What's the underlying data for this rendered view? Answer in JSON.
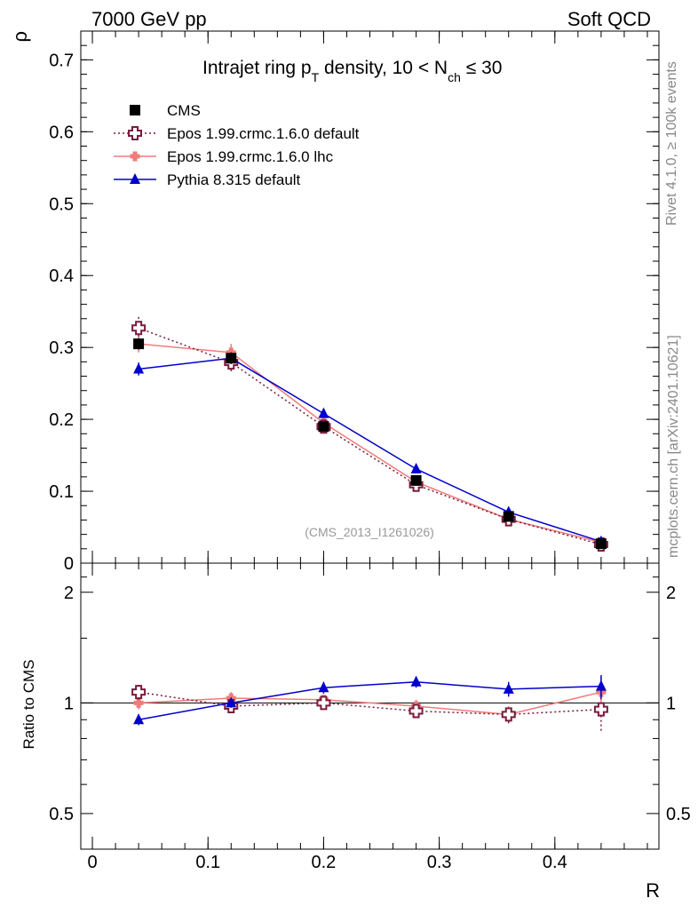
{
  "header": {
    "left": "7000 GeV pp",
    "right": "Soft QCD"
  },
  "side": {
    "rivet": "Rivet 4.1.0, ≥ 100k events",
    "site": "mcplots.cern.ch [arXiv:2401.10621]"
  },
  "chart_data": {
    "type": "line",
    "title_parts": {
      "a": "Intrajet ring p",
      "a_sub": "T",
      "b": " density, 10 < N",
      "b_sub": "ch",
      "c": " ≤ 30"
    },
    "ylabel": "ρ",
    "xlabel": "R",
    "ratio_ylabel": "Ratio to CMS",
    "watermark": "(CMS_2013_I1261026)",
    "xlim": [
      -0.01,
      0.49
    ],
    "ylim": [
      0,
      0.74
    ],
    "ratio_ylim": [
      0.4,
      2.4
    ],
    "xticks": [
      "0",
      "0.1",
      "0.2",
      "0.3",
      "0.4"
    ],
    "xtick_values": [
      0,
      0.1,
      0.2,
      0.3,
      0.4
    ],
    "yticks": [
      "0",
      "0.1",
      "0.2",
      "0.3",
      "0.4",
      "0.5",
      "0.6",
      "0.7"
    ],
    "ytick_values": [
      0,
      0.1,
      0.2,
      0.3,
      0.4,
      0.5,
      0.6,
      0.7
    ],
    "ratio_yticks": [
      "0.5",
      "1",
      "2"
    ],
    "ratio_ytick_values": [
      0.5,
      1,
      2
    ],
    "x": [
      0.04,
      0.12,
      0.2,
      0.28,
      0.36,
      0.44
    ],
    "series": [
      {
        "name": "CMS",
        "marker": "square",
        "color": "#000000",
        "line": "none",
        "values": [
          0.305,
          0.285,
          0.19,
          0.115,
          0.065,
          0.027
        ],
        "errors": [
          0.008,
          0.008,
          0.006,
          0.004,
          0.003,
          0.002
        ]
      },
      {
        "name": "Epos 1.99.crmc.1.6.0 default",
        "marker": "open-cross",
        "color": "#7a1b3a",
        "line": "dotted",
        "values": [
          0.327,
          0.279,
          0.19,
          0.109,
          0.061,
          0.026
        ],
        "errors": [
          0.018,
          0.012,
          0.006,
          0.005,
          0.004,
          0.004
        ],
        "ratio": [
          1.07,
          0.98,
          1.0,
          0.95,
          0.93,
          0.96
        ],
        "ratio_errors": [
          0.05,
          0.04,
          0.03,
          0.04,
          0.05,
          0.12
        ]
      },
      {
        "name": "Epos 1.99.crmc.1.6.0 lhc",
        "marker": "filled-cross",
        "color": "#f07b7b",
        "line": "solid",
        "values": [
          0.305,
          0.293,
          0.195,
          0.113,
          0.061,
          0.029
        ],
        "errors": [
          0.012,
          0.012,
          0.006,
          0.004,
          0.003,
          0.003
        ],
        "ratio": [
          1.0,
          1.03,
          1.02,
          0.98,
          0.93,
          1.07
        ],
        "ratio_errors": [
          0.04,
          0.04,
          0.03,
          0.04,
          0.05,
          0.1
        ]
      },
      {
        "name": "Pythia 8.315 default",
        "marker": "triangle",
        "color": "#0000cc",
        "line": "solid",
        "values": [
          0.27,
          0.285,
          0.208,
          0.131,
          0.071,
          0.03
        ],
        "errors": [
          0.009,
          0.007,
          0.005,
          0.003,
          0.002,
          0.002
        ],
        "ratio": [
          0.9,
          1.0,
          1.1,
          1.14,
          1.09,
          1.11
        ],
        "ratio_errors": [
          0.03,
          0.03,
          0.04,
          0.04,
          0.05,
          0.08
        ]
      }
    ]
  },
  "colors": {
    "cms": "#000000",
    "epos_default": "#7a1b3a",
    "epos_lhc": "#f07b7b",
    "pythia": "#0000cc",
    "watermark": "#999999",
    "side_text": "#888888"
  }
}
